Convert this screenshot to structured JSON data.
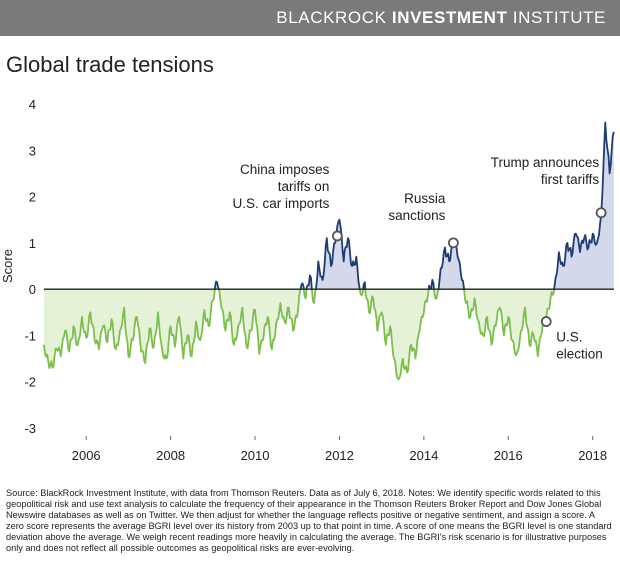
{
  "header": {
    "brand_part1": "BLACKROCK ",
    "brand_part2": "INVESTMENT",
    "brand_part3": " INSTITUTE",
    "bar_color": "#7a7a7a"
  },
  "title": "Global trade tensions",
  "source": "Source: BlackRock Investment Institute, with data from Thomson Reuters. Data as of July 6, 2018. Notes: We identify specific words related to this geopolitical risk and use text analysis to calculate the frequency of their appearance in the Thomson Reuters Broker Report and Dow Jones Global Newswire databases as well as on Twitter. We then adjust for whether the language reflects positive or negative sentiment, and assign a score. A zero score represents the average BGRI level over its history from 2003 up to that point in time. A score of one means the BGRI level is one standard deviation above the average. We weigh recent readings more heavily in calculating the average. The BGRI's risk scenario is for illustrative purposes only and does not reflect all possible outcomes as geopolitical risks are ever-evolving.",
  "chart_data": {
    "type": "line",
    "title": "Global trade tensions",
    "ylabel": "Score",
    "xlabel": "",
    "xlim": [
      2005.0,
      2018.6
    ],
    "ylim": [
      -3,
      4
    ],
    "yticks": [
      -3,
      -2,
      -1,
      0,
      1,
      2,
      3,
      4
    ],
    "xticks": [
      2006,
      2008,
      2010,
      2012,
      2014,
      2016,
      2018
    ],
    "grid": false,
    "legend": "none",
    "colors": {
      "negative_line": "#7cc04b",
      "negative_fill": "#e6f2d8",
      "positive_line": "#1f3d73",
      "positive_fill": "#d3d8ea",
      "zero_line": "#222222",
      "marker_stroke": "#555555"
    },
    "series": [
      {
        "values": [
          [
            2005.0,
            -1.2
          ],
          [
            2005.1,
            -1.55
          ],
          [
            2005.2,
            -1.7
          ],
          [
            2005.3,
            -1.3
          ],
          [
            2005.4,
            -1.45
          ],
          [
            2005.5,
            -0.9
          ],
          [
            2005.6,
            -1.35
          ],
          [
            2005.7,
            -0.8
          ],
          [
            2005.8,
            -1.2
          ],
          [
            2005.9,
            -0.6
          ],
          [
            2006.0,
            -1.05
          ],
          [
            2006.1,
            -0.5
          ],
          [
            2006.2,
            -1.1
          ],
          [
            2006.3,
            -1.3
          ],
          [
            2006.4,
            -0.8
          ],
          [
            2006.5,
            -1.15
          ],
          [
            2006.6,
            -0.65
          ],
          [
            2006.7,
            -1.3
          ],
          [
            2006.8,
            -0.9
          ],
          [
            2006.9,
            -0.4
          ],
          [
            2007.0,
            -1.45
          ],
          [
            2007.1,
            -1.1
          ],
          [
            2007.2,
            -0.6
          ],
          [
            2007.3,
            -1.35
          ],
          [
            2007.4,
            -1.6
          ],
          [
            2007.5,
            -0.85
          ],
          [
            2007.6,
            -1.25
          ],
          [
            2007.7,
            -0.5
          ],
          [
            2007.8,
            -1.3
          ],
          [
            2007.9,
            -1.5
          ],
          [
            2008.0,
            -0.8
          ],
          [
            2008.1,
            -1.25
          ],
          [
            2008.2,
            -0.6
          ],
          [
            2008.3,
            -1.5
          ],
          [
            2008.4,
            -1.0
          ],
          [
            2008.5,
            -1.45
          ],
          [
            2008.6,
            -0.7
          ],
          [
            2008.7,
            -1.1
          ],
          [
            2008.8,
            -0.45
          ],
          [
            2008.9,
            -0.8
          ],
          [
            2009.0,
            -0.25
          ],
          [
            2009.1,
            0.15
          ],
          [
            2009.2,
            -0.4
          ],
          [
            2009.3,
            -0.9
          ],
          [
            2009.4,
            -0.5
          ],
          [
            2009.5,
            -1.2
          ],
          [
            2009.6,
            -0.8
          ],
          [
            2009.7,
            -0.4
          ],
          [
            2009.8,
            -1.25
          ],
          [
            2009.9,
            -0.9
          ],
          [
            2010.0,
            -0.45
          ],
          [
            2010.1,
            -1.4
          ],
          [
            2010.2,
            -1.05
          ],
          [
            2010.3,
            -0.6
          ],
          [
            2010.4,
            -1.3
          ],
          [
            2010.5,
            -0.75
          ],
          [
            2010.6,
            -0.3
          ],
          [
            2010.7,
            -0.7
          ],
          [
            2010.8,
            -0.4
          ],
          [
            2010.9,
            -0.9
          ],
          [
            2011.0,
            -0.6
          ],
          [
            2011.1,
            0.1
          ],
          [
            2011.2,
            -0.2
          ],
          [
            2011.3,
            0.3
          ],
          [
            2011.4,
            -0.3
          ],
          [
            2011.5,
            0.6
          ],
          [
            2011.6,
            0.2
          ],
          [
            2011.7,
            1.1
          ],
          [
            2011.8,
            0.5
          ],
          [
            2011.9,
            1.0
          ],
          [
            2012.0,
            1.5
          ],
          [
            2012.1,
            0.6
          ],
          [
            2012.2,
            1.1
          ],
          [
            2012.3,
            0.5
          ],
          [
            2012.4,
            0.7
          ],
          [
            2012.5,
            -0.1
          ],
          [
            2012.6,
            0.15
          ],
          [
            2012.7,
            -0.5
          ],
          [
            2012.8,
            -0.2
          ],
          [
            2012.9,
            -0.9
          ],
          [
            2013.0,
            -0.5
          ],
          [
            2013.1,
            -1.2
          ],
          [
            2013.2,
            -0.8
          ],
          [
            2013.3,
            -1.5
          ],
          [
            2013.4,
            -1.95
          ],
          [
            2013.5,
            -1.5
          ],
          [
            2013.6,
            -1.8
          ],
          [
            2013.7,
            -1.2
          ],
          [
            2013.8,
            -1.5
          ],
          [
            2013.9,
            -0.9
          ],
          [
            2014.0,
            -0.5
          ],
          [
            2014.1,
            -0.1
          ],
          [
            2014.2,
            0.2
          ],
          [
            2014.3,
            -0.2
          ],
          [
            2014.4,
            0.45
          ],
          [
            2014.5,
            0.9
          ],
          [
            2014.6,
            0.6
          ],
          [
            2014.7,
            1.05
          ],
          [
            2014.8,
            0.7
          ],
          [
            2014.9,
            0.2
          ],
          [
            2015.0,
            -0.3
          ],
          [
            2015.1,
            -0.6
          ],
          [
            2015.2,
            -0.2
          ],
          [
            2015.3,
            -0.7
          ],
          [
            2015.4,
            -1.0
          ],
          [
            2015.5,
            -0.6
          ],
          [
            2015.6,
            -1.2
          ],
          [
            2015.7,
            -0.8
          ],
          [
            2015.8,
            -0.4
          ],
          [
            2015.9,
            -1.0
          ],
          [
            2016.0,
            -0.6
          ],
          [
            2016.1,
            -1.1
          ],
          [
            2016.2,
            -1.4
          ],
          [
            2016.3,
            -0.9
          ],
          [
            2016.4,
            -0.4
          ],
          [
            2016.5,
            -1.2
          ],
          [
            2016.6,
            -1.0
          ],
          [
            2016.7,
            -1.45
          ],
          [
            2016.8,
            -0.9
          ],
          [
            2016.9,
            -0.65
          ],
          [
            2017.0,
            -0.2
          ],
          [
            2017.1,
            0.1
          ],
          [
            2017.2,
            0.8
          ],
          [
            2017.3,
            0.5
          ],
          [
            2017.4,
            1.0
          ],
          [
            2017.5,
            0.7
          ],
          [
            2017.6,
            1.2
          ],
          [
            2017.7,
            0.8
          ],
          [
            2017.8,
            1.1
          ],
          [
            2017.9,
            0.9
          ],
          [
            2018.0,
            1.2
          ],
          [
            2018.1,
            1.0
          ],
          [
            2018.2,
            1.6
          ],
          [
            2018.3,
            3.6
          ],
          [
            2018.4,
            2.5
          ],
          [
            2018.5,
            3.4
          ]
        ]
      }
    ],
    "annotations": [
      {
        "text": "China imposes tariffs on U.S. car imports",
        "lines": [
          "China imposes",
          "tariffs on",
          "U.S. car imports"
        ],
        "x": 2011.95,
        "y": 1.15
      },
      {
        "text": "Russia sanctions",
        "lines": [
          "Russia",
          "sanctions"
        ],
        "x": 2014.7,
        "y": 1.0
      },
      {
        "text": "U.S. election",
        "lines": [
          "U.S.",
          "election"
        ],
        "x": 2016.9,
        "y": -0.7
      },
      {
        "text": "Trump announces first tariffs",
        "lines": [
          "Trump announces",
          "first tariffs"
        ],
        "x": 2018.2,
        "y": 1.65
      }
    ]
  }
}
